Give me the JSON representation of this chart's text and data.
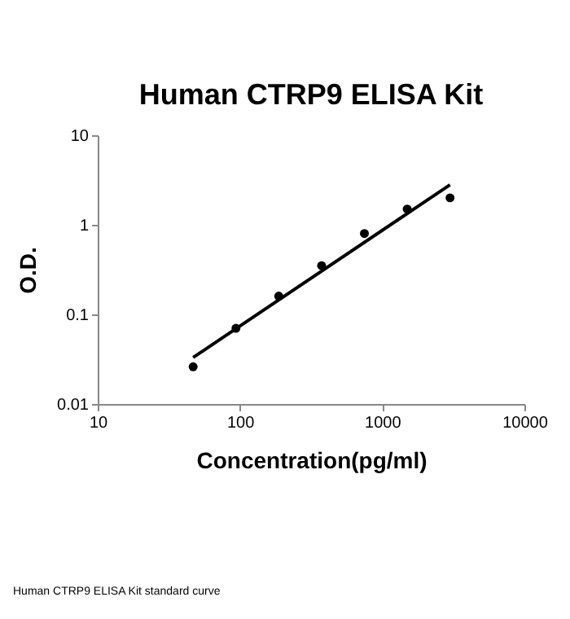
{
  "chart_data": {
    "type": "scatter",
    "title": "Human CTRP9 ELISA Kit",
    "xlabel": "Concentration(pg/ml)",
    "ylabel": "O.D.",
    "annotations": [
      "Human CTRP9 ELISA Kit standard curve"
    ],
    "log": "xy",
    "xlim": [
      10,
      10000
    ],
    "ylim": [
      0.01,
      10
    ],
    "xticks": [
      10,
      100,
      1000,
      10000
    ],
    "yticks": [
      0.01,
      0.1,
      1,
      10
    ],
    "grid": false,
    "series": [
      {
        "color": "#000000",
        "marker": "circle",
        "x": [
          46.875,
          93.75,
          187.5,
          375,
          750,
          1500,
          3000
        ],
        "values": [
          0.026,
          0.07,
          0.16,
          0.35,
          0.8,
          1.5,
          2.0
        ]
      },
      {
        "type": "line",
        "color": "#000000",
        "line_style": "solid",
        "x": [
          46.875,
          3000
        ],
        "values": [
          0.033,
          2.8
        ]
      }
    ]
  }
}
